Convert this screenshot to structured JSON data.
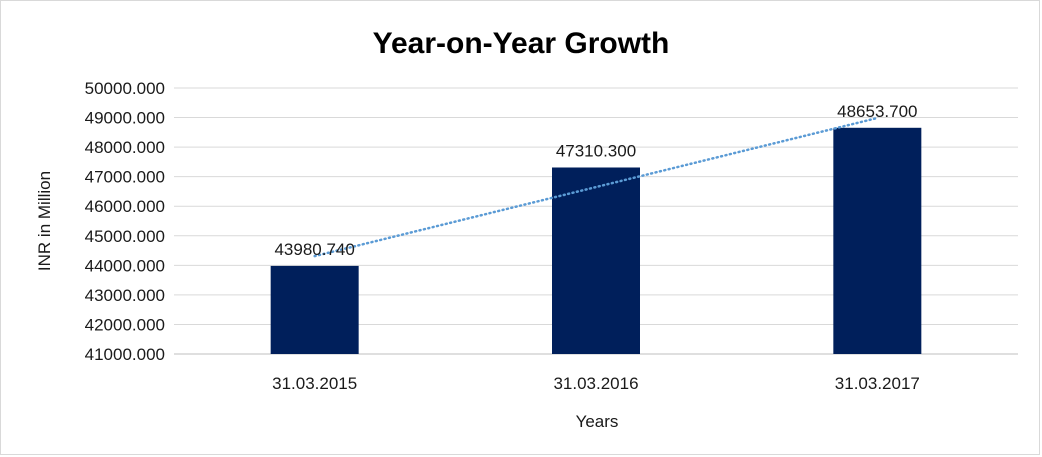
{
  "chart_data": {
    "type": "bar",
    "title": "Year-on-Year Growth",
    "xlabel": "Years",
    "ylabel": "INR in Million",
    "categories": [
      "31.03.2015",
      "31.03.2016",
      "31.03.2017"
    ],
    "values": [
      43980.74,
      47310.3,
      48653.7
    ],
    "data_labels": [
      "43980.740",
      "47310.300",
      "48653.700"
    ],
    "ylim": [
      41000,
      50000
    ],
    "y_ticks": [
      "41000.000",
      "42000.000",
      "43000.000",
      "44000.000",
      "45000.000",
      "46000.000",
      "47000.000",
      "48000.000",
      "49000.000",
      "50000.000"
    ],
    "trendline": {
      "type": "linear",
      "style": "dotted"
    },
    "grid": true,
    "legend": "none",
    "colors": {
      "bar": "#001f5b",
      "trendline": "#5b9bd5",
      "grid": "#d9d9d9"
    }
  }
}
